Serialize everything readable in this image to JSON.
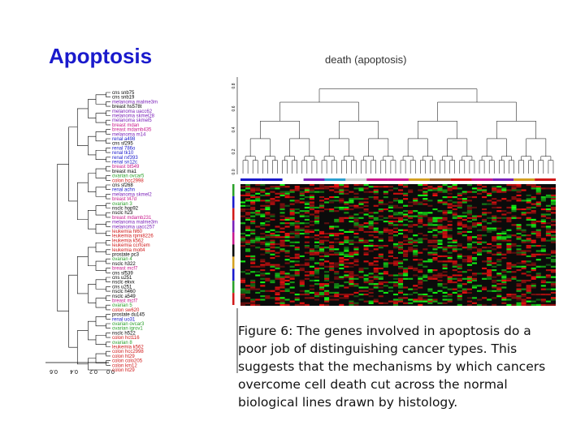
{
  "slide": {
    "title": "Apoptosis",
    "figure_title": "death (apoptosis)",
    "caption": "Figure 6: The genes involved in apoptosis do a poor job of distinguishing cancer types. This suggests that the mechanisms by which cancers overcome cell death cut across the normal biological lines drawn by histology."
  },
  "left_axis_ticks": [
    "0.6",
    "0.4",
    "0.2",
    "0.0"
  ],
  "top_axis_ticks": [
    "0.8",
    "0.6",
    "0.4",
    "0.2",
    "0.0"
  ],
  "colors": {
    "title": "#1a1acc",
    "heatmap_red": "#d01818",
    "heatmap_green": "#18d018"
  },
  "sample_labels": [
    {
      "text": "cns snb75",
      "color": "#000000"
    },
    {
      "text": "cns snb19",
      "color": "#000000"
    },
    {
      "text": "melanoma malme3m",
      "color": "#7a1fb8"
    },
    {
      "text": "breast hs578t",
      "color": "#000000"
    },
    {
      "text": "melanoma uacc62",
      "color": "#7a1fb8"
    },
    {
      "text": "melanoma skmel28",
      "color": "#7a1fb8"
    },
    {
      "text": "melanoma skmel5",
      "color": "#7a1fb8"
    },
    {
      "text": "breast mdan",
      "color": "#c8188c"
    },
    {
      "text": "breast mdamb435",
      "color": "#c8188c"
    },
    {
      "text": "melanoma m14",
      "color": "#7a1fb8"
    },
    {
      "text": "renal a498",
      "color": "#1a1acc"
    },
    {
      "text": "cns sf295",
      "color": "#000000"
    },
    {
      "text": "renal 786o",
      "color": "#1a1acc"
    },
    {
      "text": "renal tk10",
      "color": "#1a1acc"
    },
    {
      "text": "renal rxf393",
      "color": "#1a1acc"
    },
    {
      "text": "renal sn12c",
      "color": "#1a1acc"
    },
    {
      "text": "breast bt549",
      "color": "#c8188c"
    },
    {
      "text": "breast ma1",
      "color": "#000000"
    },
    {
      "text": "ovarian ovcar5",
      "color": "#2aa02a"
    },
    {
      "text": "colon hcc2998",
      "color": "#d01818"
    },
    {
      "text": "cns sf268",
      "color": "#000000"
    },
    {
      "text": "renal achn",
      "color": "#1a1acc"
    },
    {
      "text": "melanoma skmel2",
      "color": "#7a1fb8"
    },
    {
      "text": "breast t47d",
      "color": "#c8188c"
    },
    {
      "text": "ovarian 3",
      "color": "#2aa02a"
    },
    {
      "text": "nsclc hop92",
      "color": "#000000"
    },
    {
      "text": "nsclc h23",
      "color": "#000000"
    },
    {
      "text": "breast mdamb231",
      "color": "#c8188c"
    },
    {
      "text": "melanoma malme3m",
      "color": "#7a1fb8"
    },
    {
      "text": "melanoma uacc257",
      "color": "#7a1fb8"
    },
    {
      "text": "leukemia hl60",
      "color": "#d01818"
    },
    {
      "text": "leukemia rpmi8226",
      "color": "#d01818"
    },
    {
      "text": "leukemia k562",
      "color": "#d01818"
    },
    {
      "text": "leukemia ccrfcem",
      "color": "#d01818"
    },
    {
      "text": "leukemia molt4",
      "color": "#d01818"
    },
    {
      "text": "prostate pc3",
      "color": "#000000"
    },
    {
      "text": "ovarian 4",
      "color": "#2aa02a"
    },
    {
      "text": "nsclc h322",
      "color": "#000000"
    },
    {
      "text": "breast mcf7",
      "color": "#c8188c"
    },
    {
      "text": "cns sf539",
      "color": "#000000"
    },
    {
      "text": "cns u251",
      "color": "#000000"
    },
    {
      "text": "nsclc ekvx",
      "color": "#000000"
    },
    {
      "text": "cns u251",
      "color": "#000000"
    },
    {
      "text": "nsclc h460",
      "color": "#000000"
    },
    {
      "text": "nsclc a549",
      "color": "#000000"
    },
    {
      "text": "breast mcf7",
      "color": "#c8188c"
    },
    {
      "text": "ovarian 5",
      "color": "#2aa02a"
    },
    {
      "text": "colon sw620",
      "color": "#d01818"
    },
    {
      "text": "prostate du145",
      "color": "#000000"
    },
    {
      "text": "renal uo31",
      "color": "#1a1acc"
    },
    {
      "text": "ovarian ovcar3",
      "color": "#2aa02a"
    },
    {
      "text": "ovarian igrov1",
      "color": "#2aa02a"
    },
    {
      "text": "nsclc h522",
      "color": "#000000"
    },
    {
      "text": "colon hct116",
      "color": "#d01818"
    },
    {
      "text": "ovarian 8",
      "color": "#2aa02a"
    },
    {
      "text": "leukemia k562",
      "color": "#d01818"
    },
    {
      "text": "colon hcc2998",
      "color": "#d01818"
    },
    {
      "text": "colon ht29",
      "color": "#d01818"
    },
    {
      "text": "colon colo205",
      "color": "#d01818"
    },
    {
      "text": "colon km12",
      "color": "#d01818"
    },
    {
      "text": "colon ht29",
      "color": "#d01818"
    }
  ]
}
